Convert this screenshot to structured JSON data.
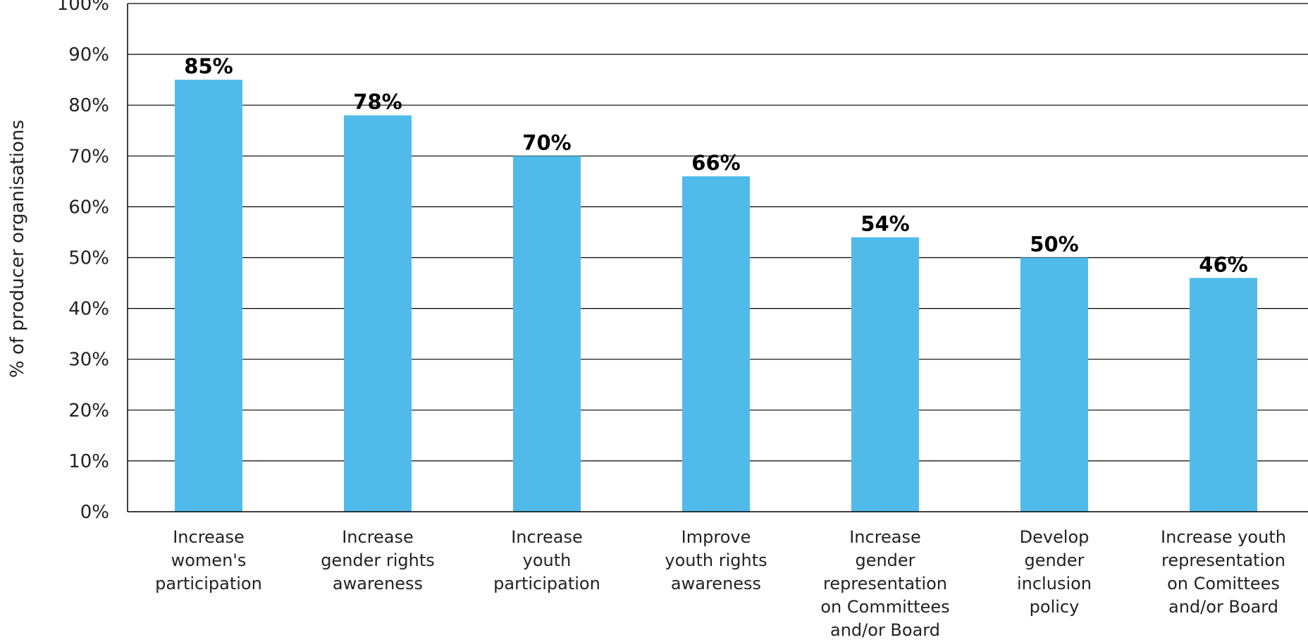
{
  "chart_data": {
    "type": "bar",
    "ylabel": "% of producer organisations",
    "xlabel": "",
    "ylim": [
      0,
      100
    ],
    "y_tick_labels": [
      "0%",
      "10%",
      "20%",
      "30%",
      "40%",
      "50%",
      "60%",
      "70%",
      "80%",
      "90%",
      "100%"
    ],
    "grid": true,
    "bar_color": "#50BBEB",
    "categories": [
      "Increase women's participation",
      "Increase gender rights awareness",
      "Increase youth participation",
      "Improve youth rights awareness",
      "Increase gender representation on Committees and/or Board",
      "Develop gender inclusion policy",
      "Increase youth representation on Comittees and/or Board"
    ],
    "category_lines": [
      [
        "Increase",
        "women's",
        "participation"
      ],
      [
        "Increase",
        "gender rights",
        "awareness"
      ],
      [
        "Increase",
        "youth",
        "participation"
      ],
      [
        "Improve",
        "youth rights",
        "awareness"
      ],
      [
        "Increase",
        "gender",
        "representation",
        "on Committees",
        "and/or Board"
      ],
      [
        "Develop",
        "gender",
        "inclusion",
        "policy"
      ],
      [
        "Increase youth",
        "representation",
        "on Comittees",
        "and/or Board"
      ]
    ],
    "values": [
      85,
      78,
      70,
      66,
      54,
      50,
      46
    ],
    "value_labels": [
      "85%",
      "78%",
      "70%",
      "66%",
      "54%",
      "50%",
      "46%"
    ]
  }
}
